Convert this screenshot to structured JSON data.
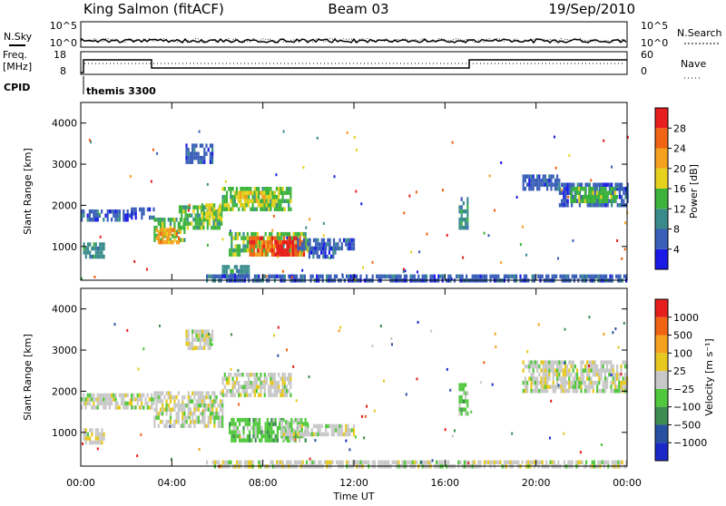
{
  "header": {
    "station": "King Salmon (fitACF)",
    "beam": "Beam 03",
    "date": "19/Sep/2010"
  },
  "noise_panel": {
    "left_label": "N.Sky",
    "right_label": "N.Search",
    "left_ticks": [
      "10^5",
      "10^0"
    ],
    "right_ticks": [
      "10^5",
      "10^0"
    ]
  },
  "freq_panel": {
    "left_label_1": "Freq.",
    "left_label_2": "[MHz]",
    "right_label": "Nave",
    "left_ticks": [
      "18",
      "8"
    ],
    "right_ticks": [
      "60",
      "0"
    ]
  },
  "cpid": {
    "label": "CPID",
    "program": "themis 3300"
  },
  "chart_data": [
    {
      "type": "heatmap",
      "panel": "power",
      "ylabel": "Slant Range [km]",
      "ylim": [
        180,
        4500
      ],
      "y_ticks": [
        "1000",
        "2000",
        "3000",
        "4000"
      ],
      "colorbar_label": "Power [dB]",
      "colorbar_ticks": [
        "4",
        "8",
        "12",
        "16",
        "20",
        "24",
        "28"
      ],
      "colors": [
        "#1a1ae6",
        "#3a5fb8",
        "#3a8c8c",
        "#3cb43c",
        "#e6d21e",
        "#f5a01e",
        "#f06414",
        "#e61e1e"
      ],
      "regions": [
        {
          "t0": 0.1,
          "t1": 1.0,
          "r0": 750,
          "r1": 1100,
          "level": 2
        },
        {
          "t0": 0.0,
          "t1": 2.2,
          "r0": 1650,
          "r1": 1900,
          "level": 1
        },
        {
          "t0": 2.2,
          "t1": 3.2,
          "r0": 1700,
          "r1": 1950,
          "level": 1
        },
        {
          "t0": 3.2,
          "t1": 4.6,
          "r0": 1150,
          "r1": 1700,
          "level": 3
        },
        {
          "t0": 3.3,
          "t1": 4.3,
          "r0": 1150,
          "r1": 1450,
          "level": 5
        },
        {
          "t0": 4.3,
          "t1": 6.2,
          "r0": 1450,
          "r1": 2000,
          "level": 3
        },
        {
          "t0": 5.3,
          "t1": 6.1,
          "r0": 1700,
          "r1": 2050,
          "level": 4
        },
        {
          "t0": 6.2,
          "t1": 9.2,
          "r0": 1900,
          "r1": 2450,
          "level": 3
        },
        {
          "t0": 6.8,
          "t1": 8.6,
          "r0": 2050,
          "r1": 2350,
          "level": 4
        },
        {
          "t0": 6.5,
          "t1": 10.0,
          "r0": 800,
          "r1": 1350,
          "level": 3
        },
        {
          "t0": 7.4,
          "t1": 9.8,
          "r0": 850,
          "r1": 1250,
          "level": 6
        },
        {
          "t0": 8.5,
          "t1": 9.3,
          "r0": 850,
          "r1": 1150,
          "level": 7
        },
        {
          "t0": 9.5,
          "t1": 12.0,
          "r0": 1000,
          "r1": 1200,
          "level": 1
        },
        {
          "t0": 10.0,
          "t1": 11.2,
          "r0": 800,
          "r1": 1000,
          "level": 1
        },
        {
          "t0": 4.6,
          "t1": 5.8,
          "r0": 3100,
          "r1": 3500,
          "level": 1
        },
        {
          "t0": 6.2,
          "t1": 7.4,
          "r0": 350,
          "r1": 550,
          "level": 2
        },
        {
          "t0": 5.5,
          "t1": 24.0,
          "r0": 180,
          "r1": 320,
          "level": 1
        },
        {
          "t0": 16.6,
          "t1": 17.0,
          "r0": 1500,
          "r1": 2200,
          "level": 2
        },
        {
          "t0": 19.4,
          "t1": 21.0,
          "r0": 2400,
          "r1": 2750,
          "level": 1
        },
        {
          "t0": 21.0,
          "t1": 24.0,
          "r0": 2050,
          "r1": 2550,
          "level": 1
        },
        {
          "t0": 21.5,
          "t1": 23.6,
          "r0": 2150,
          "r1": 2450,
          "level": 3
        }
      ]
    },
    {
      "type": "heatmap",
      "panel": "velocity",
      "ylabel": "Slant Range [km]",
      "xlabel": "Time UT",
      "ylim": [
        180,
        4500
      ],
      "y_ticks": [
        "1000",
        "2000",
        "3000",
        "4000"
      ],
      "x_ticks": [
        "00:00",
        "04:00",
        "08:00",
        "12:00",
        "16:00",
        "20:00",
        "00:00"
      ],
      "colorbar_label": "Velocity [m s⁻¹]",
      "colorbar_ticks": [
        "1000",
        "500",
        "100",
        "25",
        "−25",
        "−100",
        "−500",
        "−1000"
      ],
      "colors": [
        "#1a28c8",
        "#2850a0",
        "#3c8c50",
        "#50c83c",
        "#c8c8c8",
        "#e6c81e",
        "#f5a01e",
        "#f06414",
        "#e61e1e"
      ],
      "regions": [
        {
          "t0": 0.1,
          "t1": 1.0,
          "r0": 750,
          "r1": 1100,
          "level": 4
        },
        {
          "t0": 0.0,
          "t1": 3.2,
          "r0": 1650,
          "r1": 1950,
          "level": 4
        },
        {
          "t0": 3.2,
          "t1": 6.2,
          "r0": 1150,
          "r1": 2000,
          "level": 4
        },
        {
          "t0": 6.2,
          "t1": 9.2,
          "r0": 1900,
          "r1": 2450,
          "level": 4
        },
        {
          "t0": 6.5,
          "t1": 10.0,
          "r0": 800,
          "r1": 1350,
          "level": 3
        },
        {
          "t0": 8.8,
          "t1": 9.4,
          "r0": 900,
          "r1": 1300,
          "level": 4
        },
        {
          "t0": 9.5,
          "t1": 12.0,
          "r0": 1000,
          "r1": 1200,
          "level": 4
        },
        {
          "t0": 4.6,
          "t1": 5.8,
          "r0": 3100,
          "r1": 3500,
          "level": 4
        },
        {
          "t0": 5.5,
          "t1": 24.0,
          "r0": 180,
          "r1": 320,
          "level": 4
        },
        {
          "t0": 16.6,
          "t1": 17.0,
          "r0": 1500,
          "r1": 2200,
          "level": 3
        },
        {
          "t0": 19.4,
          "t1": 24.0,
          "r0": 2050,
          "r1": 2750,
          "level": 4
        }
      ]
    }
  ]
}
